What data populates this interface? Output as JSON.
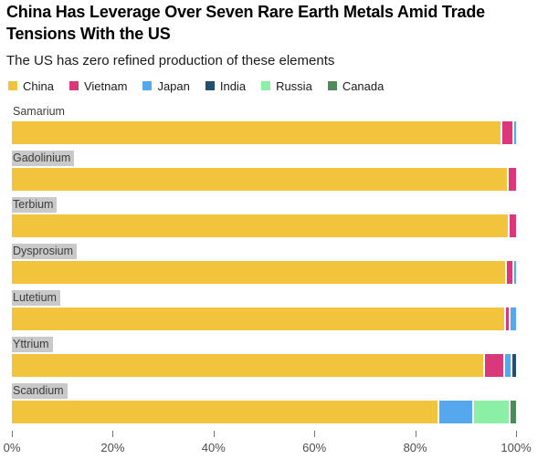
{
  "header": {
    "title": "China Has Leverage Over Seven Rare Earth Metals Amid Trade Tensions With the US",
    "subtitle": "The US has zero refined production of these elements"
  },
  "chart_data": {
    "type": "bar",
    "orientation": "horizontal",
    "stacked": true,
    "unit": "%",
    "title": "China Has Leverage Over Seven Rare Earth Metals Amid Trade Tensions With the US",
    "subtitle": "The US has zero refined production of these elements",
    "legend_position": "top",
    "grid": false,
    "categories": [
      "Samarium",
      "Gadolinium",
      "Terbium",
      "Dysprosium",
      "Lutetium",
      "Yttrium",
      "Scandium"
    ],
    "category_label_highlighted": [
      false,
      true,
      true,
      true,
      true,
      true,
      true
    ],
    "series": [
      {
        "name": "China",
        "color": "#F2C43D",
        "values": [
          97.3,
          98.5,
          98.7,
          98.2,
          98.0,
          93.9,
          84.8
        ]
      },
      {
        "name": "Vietnam",
        "color": "#D9397B",
        "values": [
          2.4,
          1.5,
          1.3,
          1.4,
          1.0,
          4.0,
          0
        ]
      },
      {
        "name": "Japan",
        "color": "#55A8ED",
        "values": [
          0.3,
          0,
          0,
          0.4,
          1.0,
          1.4,
          6.9
        ]
      },
      {
        "name": "India",
        "color": "#20506E",
        "values": [
          0,
          0,
          0,
          0,
          0,
          0.7,
          0
        ]
      },
      {
        "name": "Russia",
        "color": "#8BEFA5",
        "values": [
          0,
          0,
          0,
          0,
          0,
          0,
          7.2
        ]
      },
      {
        "name": "Canada",
        "color": "#4E8A5C",
        "values": [
          0,
          0,
          0,
          0,
          0,
          0,
          1.1
        ]
      }
    ],
    "x_axis": {
      "range": [
        0,
        100
      ],
      "tick_labels": [
        "0%",
        "20%",
        "40%",
        "60%",
        "80%",
        "100%"
      ],
      "tick_values": [
        0,
        20,
        40,
        60,
        80,
        100
      ]
    }
  }
}
